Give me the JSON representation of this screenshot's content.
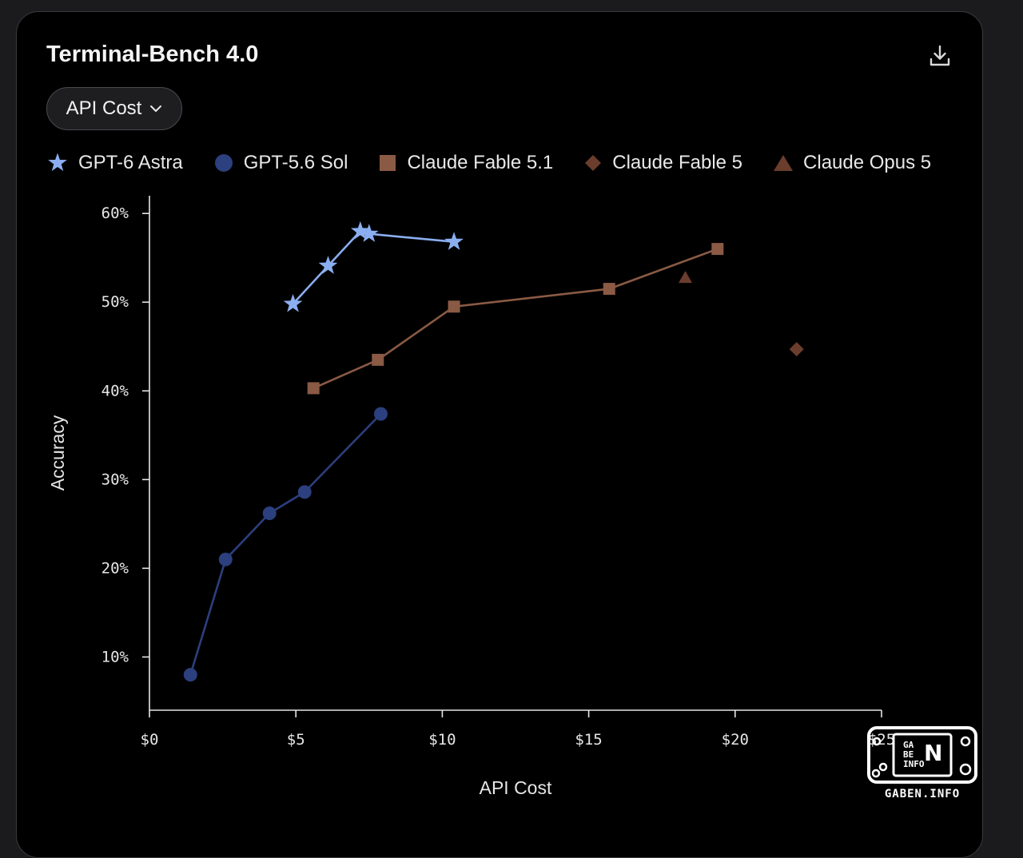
{
  "header": {
    "title": "Terminal-Bench 4.0",
    "download_icon": "download-icon"
  },
  "dropdown": {
    "label": "API Cost",
    "icon": "chevron-down-icon"
  },
  "watermark": {
    "text": "GABEN.INFO",
    "logo_letters": "GABEN INFO"
  },
  "colors": {
    "background": "#000000",
    "gpt6_astra": "#8aaef0",
    "gpt56_sol": "#2c3f7e",
    "claude_fable_51": "#8a5a45",
    "claude_fable_5": "#6b3d2c",
    "claude_opus_5": "#6b3d2c"
  },
  "chart_data": {
    "type": "scatter",
    "title": "",
    "xlabel": "API Cost",
    "ylabel": "Accuracy",
    "xlim": [
      0,
      25
    ],
    "ylim": [
      4,
      62
    ],
    "x_ticks": [
      {
        "value": 0,
        "label": "$0"
      },
      {
        "value": 5,
        "label": "$5"
      },
      {
        "value": 10,
        "label": "$10"
      },
      {
        "value": 15,
        "label": "$15"
      },
      {
        "value": 20,
        "label": "$20"
      },
      {
        "value": 25,
        "label": "$25"
      }
    ],
    "y_ticks": [
      {
        "value": 10,
        "label": "10%"
      },
      {
        "value": 20,
        "label": "20%"
      },
      {
        "value": 30,
        "label": "30%"
      },
      {
        "value": 40,
        "label": "40%"
      },
      {
        "value": 50,
        "label": "50%"
      },
      {
        "value": 60,
        "label": "60%"
      }
    ],
    "grid": false,
    "legend_position": "top",
    "series": [
      {
        "name": "GPT-6 Astra",
        "marker": "star",
        "color": "#8aaef0",
        "connected": true,
        "points": [
          [
            4.9,
            49.8
          ],
          [
            6.1,
            54.1
          ],
          [
            7.2,
            58.0
          ],
          [
            7.5,
            57.7
          ],
          [
            10.4,
            56.8
          ]
        ]
      },
      {
        "name": "GPT-5.6 Sol",
        "marker": "circle",
        "color": "#2c3f7e",
        "connected": true,
        "points": [
          [
            1.4,
            8.0
          ],
          [
            2.6,
            21.0
          ],
          [
            4.1,
            26.2
          ],
          [
            5.3,
            28.6
          ],
          [
            7.9,
            37.4
          ]
        ]
      },
      {
        "name": "Claude Fable 5.1",
        "marker": "square",
        "color": "#8a5a45",
        "connected": true,
        "points": [
          [
            5.6,
            40.3
          ],
          [
            7.8,
            43.5
          ],
          [
            10.4,
            49.5
          ],
          [
            15.7,
            51.5
          ],
          [
            19.4,
            56.0
          ]
        ]
      },
      {
        "name": "Claude Fable 5",
        "marker": "diamond",
        "color": "#6b3d2c",
        "connected": false,
        "points": [
          [
            22.1,
            44.7
          ]
        ]
      },
      {
        "name": "Claude Opus 5",
        "marker": "triangle",
        "color": "#6b3d2c",
        "connected": false,
        "points": [
          [
            18.3,
            52.8
          ]
        ]
      }
    ]
  }
}
